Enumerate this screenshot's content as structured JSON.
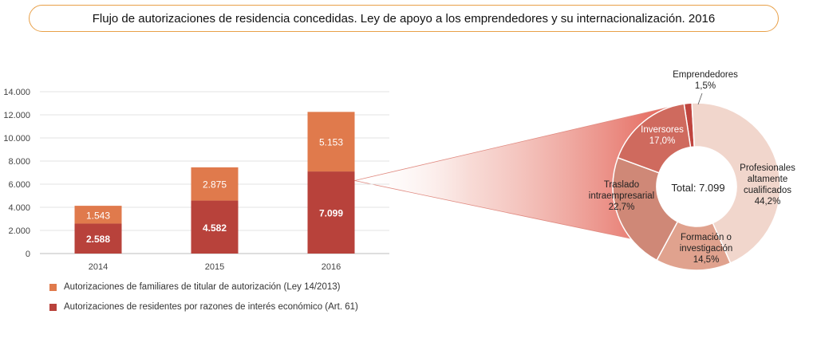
{
  "title": "Flujo de autorizaciones de residencia concedidas. Ley de apoyo a los emprendedores y su internacionalización. 2016",
  "colors": {
    "familiares": "#e07a4c",
    "residentes": "#b8423b",
    "title_border": "#e8a048",
    "pie": [
      "#c0453f",
      "#cf6a5e",
      "#cf8877",
      "#e0a28e",
      "#f1d6cc"
    ]
  },
  "chart_data": [
    {
      "type": "bar",
      "stacked": true,
      "categories": [
        "2014",
        "2015",
        "2016"
      ],
      "y_ticks": [
        "0",
        "2.000",
        "4.000",
        "6.000",
        "8.000",
        "10.000",
        "12.000",
        "14.000"
      ],
      "ylim": [
        0,
        14000
      ],
      "grid": true,
      "series": [
        {
          "name": "Autorizaciones de residentes por razones de interés económico (Art. 61)",
          "values": [
            2588,
            4582,
            7099
          ],
          "labels": [
            "2.588",
            "4.582",
            "7.099"
          ]
        },
        {
          "name": "Autorizaciones de familiares de titular de autorización (Ley 14/2013)",
          "values": [
            1543,
            2875,
            5153
          ],
          "labels": [
            "1.543",
            "2.875",
            "5.153"
          ]
        }
      ],
      "legend_position": "bottom"
    },
    {
      "type": "pie",
      "donut": true,
      "center_label": "Total: 7.099",
      "slices": [
        {
          "label": "Emprendedores",
          "value": 1.5,
          "pct_label": "1,5%"
        },
        {
          "label": "Profesionales altamente cualificados",
          "value": 44.2,
          "pct_label": "44,2%"
        },
        {
          "label": "Formación o investigación",
          "value": 14.5,
          "pct_label": "14,5%"
        },
        {
          "label": "Traslado intraempresarial",
          "value": 22.7,
          "pct_label": "22,7%"
        },
        {
          "label": "Inversores",
          "value": 17.0,
          "pct_label": "17,0%"
        }
      ]
    }
  ]
}
